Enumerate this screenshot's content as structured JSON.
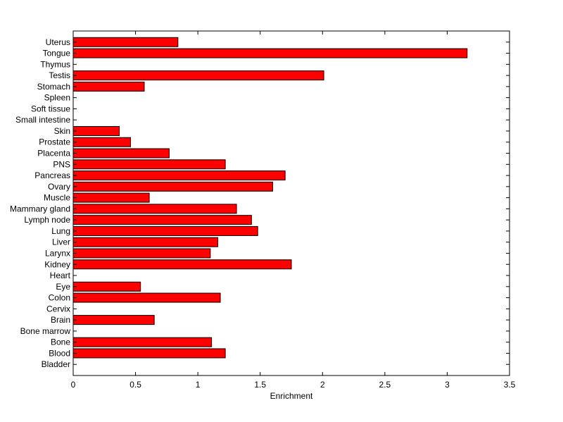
{
  "chart_data": {
    "type": "bar",
    "orientation": "horizontal",
    "title": "",
    "xlabel": "Enrichment",
    "ylabel": "",
    "xlim": [
      0,
      3.5
    ],
    "xticks": [
      0,
      0.5,
      1,
      1.5,
      2,
      2.5,
      3,
      3.5
    ],
    "xtick_labels": [
      "0",
      "0.5",
      "1",
      "1.5",
      "2",
      "2.5",
      "3",
      "3.5"
    ],
    "grid": false,
    "legend": "none",
    "bar_color": "#ff0000",
    "bar_edge_color": "#000000",
    "categories": [
      "Bladder",
      "Blood",
      "Bone",
      "Bone marrow",
      "Brain",
      "Cervix",
      "Colon",
      "Eye",
      "Heart",
      "Kidney",
      "Larynx",
      "Liver",
      "Lung",
      "Lymph node",
      "Mammary gland",
      "Muscle",
      "Ovary",
      "Pancreas",
      "PNS",
      "Placenta",
      "Prostate",
      "Skin",
      "Small intestine",
      "Soft tissue",
      "Spleen",
      "Stomach",
      "Testis",
      "Thymus",
      "Tongue",
      "Uterus"
    ],
    "values": [
      0,
      1.22,
      1.11,
      0,
      0.65,
      0,
      1.18,
      0.54,
      0,
      1.75,
      1.1,
      1.16,
      1.48,
      1.43,
      1.31,
      0.61,
      1.6,
      1.7,
      1.22,
      0.77,
      0.46,
      0.37,
      0,
      0,
      0,
      0.57,
      2.01,
      0,
      3.16,
      0.84
    ]
  }
}
